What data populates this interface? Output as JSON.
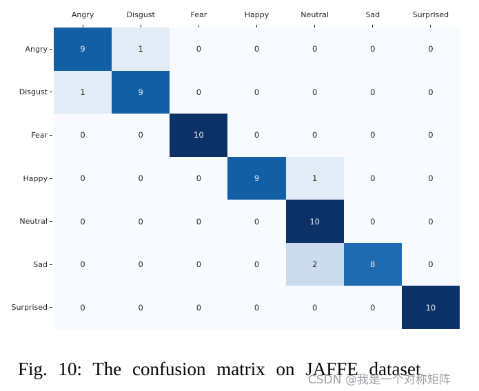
{
  "chart_data": {
    "type": "heatmap",
    "title": "",
    "xlabel": "",
    "ylabel": "",
    "categories_x": [
      "Angry",
      "Disgust",
      "Fear",
      "Happy",
      "Neutral",
      "Sad",
      "Surprised"
    ],
    "categories_y": [
      "Angry",
      "Disgust",
      "Fear",
      "Happy",
      "Neutral",
      "Sad",
      "Surprised"
    ],
    "matrix": [
      [
        9,
        1,
        0,
        0,
        0,
        0,
        0
      ],
      [
        1,
        9,
        0,
        0,
        0,
        0,
        0
      ],
      [
        0,
        0,
        10,
        0,
        0,
        0,
        0
      ],
      [
        0,
        0,
        0,
        9,
        1,
        0,
        0
      ],
      [
        0,
        0,
        0,
        0,
        10,
        0,
        0
      ],
      [
        0,
        0,
        0,
        0,
        2,
        8,
        0
      ],
      [
        0,
        0,
        0,
        0,
        0,
        0,
        10
      ]
    ],
    "colormap": "Blues",
    "value_range": [
      0,
      10
    ],
    "value_colors": {
      "0": "#f7fbff",
      "1": "#e2ecf7",
      "2": "#ccdcee",
      "8": "#1f6bb1",
      "9": "#125fa6",
      "10": "#0c3166"
    },
    "cell_text_dark": "#262626",
    "cell_text_light": "#e4eaf2",
    "grid": "off",
    "legend": "none",
    "annotations": "cell values shown in each cell"
  },
  "caption": "Fig. 10: The confusion matrix on JAFFE dataset",
  "watermark": "CSDN @我是一个对称矩阵"
}
